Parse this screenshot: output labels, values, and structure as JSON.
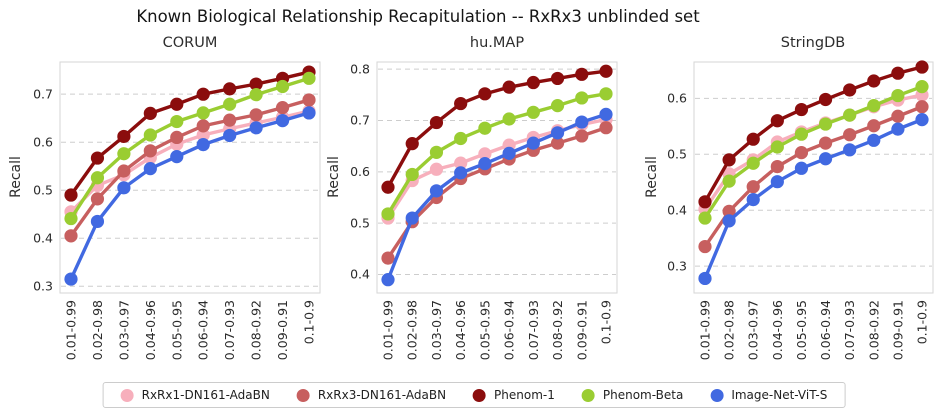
{
  "main_title": "Known Biological Relationship Recapitulation -- RxRx3 unblinded set",
  "legend": {
    "position": "bottom"
  },
  "chart_data": [
    {
      "type": "line",
      "title": "CORUM",
      "ylabel": "Recall",
      "x_tick_rotation": 90,
      "grid": "horizontal-dashed",
      "categories": [
        "0.01-0.99",
        "0.02-0.98",
        "0.03-0.97",
        "0.04-0.96",
        "0.05-0.95",
        "0.06-0.94",
        "0.07-0.93",
        "0.08-0.92",
        "0.09-0.91",
        "0.1-0.9"
      ],
      "yticks": [
        0.3,
        0.4,
        0.5,
        0.6,
        0.7
      ],
      "ylim": [
        0.286,
        0.767
      ],
      "series": [
        {
          "name": "RxRx1-DN161-AdaBN",
          "color": "#F7AFBC",
          "values": [
            0.455,
            0.51,
            0.532,
            0.568,
            0.596,
            0.615,
            0.628,
            0.64,
            0.652,
            0.665
          ]
        },
        {
          "name": "RxRx3-DN161-AdaBN",
          "color": "#C75F5F",
          "values": [
            0.405,
            0.482,
            0.54,
            0.582,
            0.61,
            0.634,
            0.646,
            0.657,
            0.672,
            0.688
          ]
        },
        {
          "name": "Phenom-1",
          "color": "#8B0D0D",
          "values": [
            0.49,
            0.567,
            0.612,
            0.66,
            0.679,
            0.7,
            0.711,
            0.721,
            0.733,
            0.746
          ]
        },
        {
          "name": "Phenom-Beta",
          "color": "#9ACD32",
          "values": [
            0.441,
            0.526,
            0.576,
            0.615,
            0.643,
            0.661,
            0.679,
            0.699,
            0.716,
            0.733
          ]
        },
        {
          "name": "Image-Net-ViT-S",
          "color": "#4169E1",
          "values": [
            0.315,
            0.435,
            0.505,
            0.545,
            0.57,
            0.595,
            0.614,
            0.63,
            0.645,
            0.661
          ]
        }
      ]
    },
    {
      "type": "line",
      "title": "hu.MAP",
      "ylabel": "Recall",
      "x_tick_rotation": 90,
      "grid": "horizontal-dashed",
      "categories": [
        "0.01-0.99",
        "0.02-0.98",
        "0.03-0.97",
        "0.04-0.96",
        "0.05-0.95",
        "0.06-0.94",
        "0.07-0.93",
        "0.08-0.92",
        "0.09-0.91",
        "0.1-0.9"
      ],
      "yticks": [
        0.4,
        0.5,
        0.6,
        0.7,
        0.8
      ],
      "ylim": [
        0.364,
        0.814
      ],
      "series": [
        {
          "name": "RxRx1-DN161-AdaBN",
          "color": "#F7AFBC",
          "values": [
            0.51,
            0.583,
            0.605,
            0.617,
            0.635,
            0.652,
            0.667,
            0.68,
            0.692,
            0.702
          ]
        },
        {
          "name": "RxRx3-DN161-AdaBN",
          "color": "#C75F5F",
          "values": [
            0.432,
            0.503,
            0.55,
            0.587,
            0.606,
            0.625,
            0.642,
            0.656,
            0.67,
            0.686
          ]
        },
        {
          "name": "Phenom-1",
          "color": "#8B0D0D",
          "values": [
            0.57,
            0.655,
            0.696,
            0.733,
            0.752,
            0.765,
            0.774,
            0.782,
            0.79,
            0.796
          ]
        },
        {
          "name": "Phenom-Beta",
          "color": "#9ACD32",
          "values": [
            0.518,
            0.595,
            0.638,
            0.665,
            0.685,
            0.703,
            0.716,
            0.729,
            0.744,
            0.752
          ]
        },
        {
          "name": "Image-Net-ViT-S",
          "color": "#4169E1",
          "values": [
            0.39,
            0.51,
            0.563,
            0.598,
            0.616,
            0.636,
            0.656,
            0.676,
            0.697,
            0.712
          ]
        }
      ]
    },
    {
      "type": "line",
      "title": "StringDB",
      "ylabel": "Recall",
      "x_tick_rotation": 90,
      "grid": "horizontal-dashed",
      "categories": [
        "0.01-0.99",
        "0.02-0.98",
        "0.03-0.97",
        "0.04-0.96",
        "0.05-0.95",
        "0.06-0.94",
        "0.07-0.93",
        "0.08-0.92",
        "0.09-0.91",
        "0.1-0.9"
      ],
      "yticks": [
        0.3,
        0.4,
        0.5,
        0.6
      ],
      "ylim": [
        0.252,
        0.665
      ],
      "series": [
        {
          "name": "RxRx1-DN161-AdaBN",
          "color": "#F7AFBC",
          "values": [
            0.402,
            0.465,
            0.49,
            0.522,
            0.54,
            0.556,
            0.57,
            0.585,
            0.597,
            0.606
          ]
        },
        {
          "name": "RxRx3-DN161-AdaBN",
          "color": "#C75F5F",
          "values": [
            0.335,
            0.398,
            0.442,
            0.478,
            0.503,
            0.52,
            0.535,
            0.551,
            0.568,
            0.585
          ]
        },
        {
          "name": "Phenom-1",
          "color": "#8B0D0D",
          "values": [
            0.415,
            0.49,
            0.527,
            0.56,
            0.58,
            0.598,
            0.615,
            0.631,
            0.645,
            0.656
          ]
        },
        {
          "name": "Phenom-Beta",
          "color": "#9ACD32",
          "values": [
            0.386,
            0.452,
            0.484,
            0.513,
            0.536,
            0.554,
            0.57,
            0.587,
            0.605,
            0.621
          ]
        },
        {
          "name": "Image-Net-ViT-S",
          "color": "#4169E1",
          "values": [
            0.278,
            0.381,
            0.419,
            0.451,
            0.475,
            0.492,
            0.508,
            0.525,
            0.545,
            0.562
          ]
        }
      ]
    }
  ]
}
